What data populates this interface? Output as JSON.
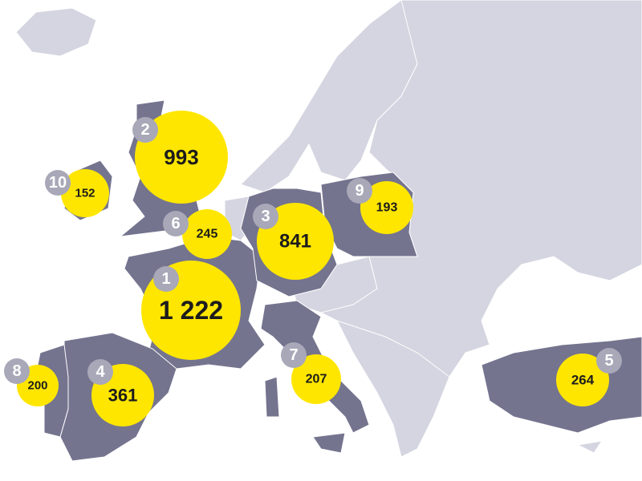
{
  "colors": {
    "bubble": "#ffe600",
    "rank_badge": "#a8a8b8",
    "highlighted_country": "#74748f",
    "other_land": "#d5d5e1",
    "water": "#ffffff"
  },
  "bubbles": [
    {
      "rank": "1",
      "value": "1 222"
    },
    {
      "rank": "2",
      "value": "993"
    },
    {
      "rank": "3",
      "value": "841"
    },
    {
      "rank": "4",
      "value": "361"
    },
    {
      "rank": "5",
      "value": "264"
    },
    {
      "rank": "6",
      "value": "245"
    },
    {
      "rank": "7",
      "value": "207"
    },
    {
      "rank": "8",
      "value": "200"
    },
    {
      "rank": "9",
      "value": "193"
    },
    {
      "rank": "10",
      "value": "152"
    }
  ]
}
